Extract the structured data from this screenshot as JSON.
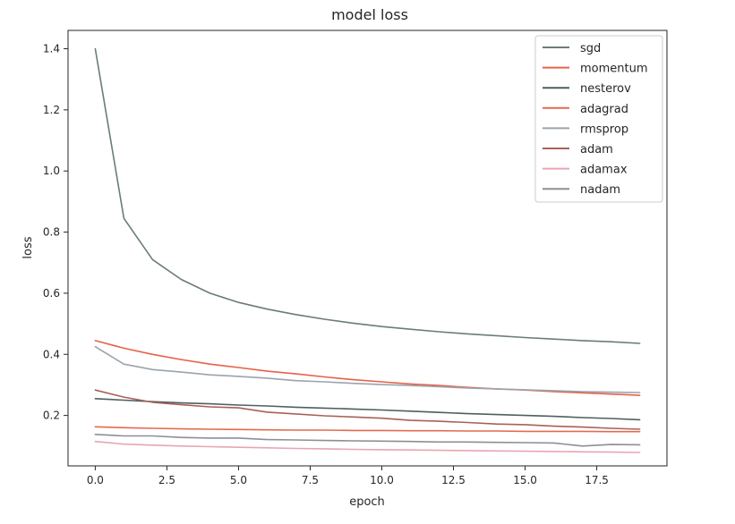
{
  "chart_data": {
    "type": "line",
    "title": "model loss",
    "xlabel": "epoch",
    "ylabel": "loss",
    "xlim": [
      -0.95,
      19.95
    ],
    "ylim": [
      0.035,
      1.46
    ],
    "xticks": [
      0.0,
      2.5,
      5.0,
      7.5,
      10.0,
      12.5,
      15.0,
      17.5
    ],
    "xtick_labels": [
      "0.0",
      "2.5",
      "5.0",
      "7.5",
      "10.0",
      "12.5",
      "15.0",
      "17.5"
    ],
    "yticks": [
      0.2,
      0.4,
      0.6,
      0.8,
      1.0,
      1.2,
      1.4
    ],
    "ytick_labels": [
      "0.2",
      "0.4",
      "0.6",
      "0.8",
      "1.0",
      "1.2",
      "1.4"
    ],
    "grid": false,
    "legend_position": "top-right",
    "x": [
      0,
      1,
      2,
      3,
      4,
      5,
      6,
      7,
      8,
      9,
      10,
      11,
      12,
      13,
      14,
      15,
      16,
      17,
      18,
      19
    ],
    "series": [
      {
        "name": "sgd",
        "color": "#6b7b7b",
        "values": [
          1.4,
          0.845,
          0.71,
          0.645,
          0.6,
          0.57,
          0.548,
          0.53,
          0.515,
          0.502,
          0.491,
          0.482,
          0.474,
          0.467,
          0.461,
          0.455,
          0.45,
          0.445,
          0.441,
          0.436
        ]
      },
      {
        "name": "momentum",
        "color": "#e8604a",
        "values": [
          0.445,
          0.42,
          0.4,
          0.383,
          0.368,
          0.357,
          0.345,
          0.336,
          0.326,
          0.317,
          0.31,
          0.303,
          0.298,
          0.292,
          0.287,
          0.283,
          0.278,
          0.274,
          0.27,
          0.266
        ]
      },
      {
        "name": "nesterov",
        "color": "#4f5f5f",
        "values": [
          0.255,
          0.25,
          0.245,
          0.241,
          0.238,
          0.234,
          0.231,
          0.227,
          0.224,
          0.221,
          0.218,
          0.214,
          0.21,
          0.206,
          0.203,
          0.2,
          0.197,
          0.193,
          0.19,
          0.186
        ]
      },
      {
        "name": "adagrad",
        "color": "#e46a4f",
        "values": [
          0.163,
          0.16,
          0.158,
          0.156,
          0.155,
          0.154,
          0.153,
          0.152,
          0.152,
          0.151,
          0.151,
          0.15,
          0.15,
          0.149,
          0.149,
          0.148,
          0.148,
          0.148,
          0.147,
          0.147
        ]
      },
      {
        "name": "rmsprop",
        "color": "#9aa4ab",
        "values": [
          0.425,
          0.368,
          0.35,
          0.342,
          0.333,
          0.328,
          0.322,
          0.314,
          0.31,
          0.305,
          0.301,
          0.298,
          0.294,
          0.29,
          0.287,
          0.284,
          0.281,
          0.278,
          0.276,
          0.275
        ]
      },
      {
        "name": "adam",
        "color": "#a86058",
        "values": [
          0.283,
          0.26,
          0.243,
          0.235,
          0.228,
          0.225,
          0.211,
          0.205,
          0.199,
          0.195,
          0.191,
          0.184,
          0.181,
          0.177,
          0.172,
          0.17,
          0.165,
          0.162,
          0.158,
          0.155
        ]
      },
      {
        "name": "adamax",
        "color": "#e8a5b3",
        "values": [
          0.115,
          0.106,
          0.103,
          0.1,
          0.098,
          0.096,
          0.094,
          0.092,
          0.091,
          0.089,
          0.088,
          0.087,
          0.086,
          0.085,
          0.084,
          0.083,
          0.082,
          0.081,
          0.08,
          0.079
        ]
      },
      {
        "name": "nadam",
        "color": "#8e8e96",
        "values": [
          0.138,
          0.133,
          0.133,
          0.128,
          0.126,
          0.126,
          0.121,
          0.12,
          0.118,
          0.117,
          0.116,
          0.115,
          0.113,
          0.113,
          0.112,
          0.111,
          0.11,
          0.1,
          0.105,
          0.104
        ]
      }
    ]
  }
}
